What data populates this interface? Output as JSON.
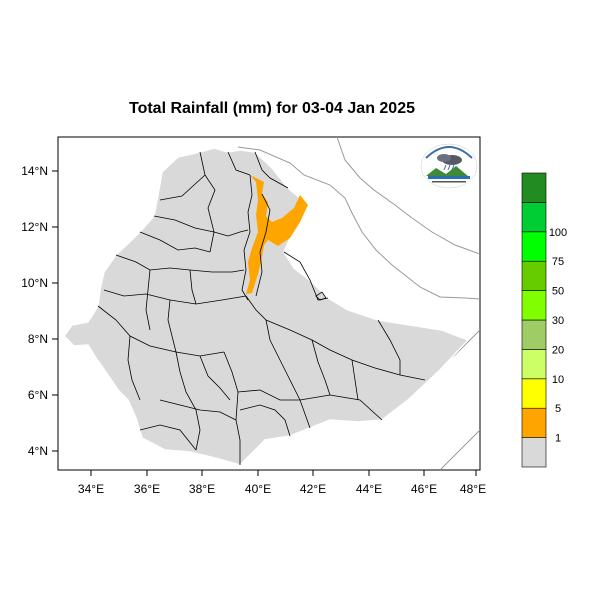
{
  "title": "Total Rainfall (mm) for 03-04 Jan 2025",
  "lat_ticks": [
    "14°N",
    "12°N",
    "10°N",
    "8°N",
    "6°N",
    "4°N"
  ],
  "lon_ticks": [
    "34°E",
    "36°E",
    "38°E",
    "40°E",
    "42°E",
    "44°E",
    "46°E",
    "48°E"
  ],
  "legend": {
    "labels": [
      "1",
      "5",
      "10",
      "20",
      "30",
      "50",
      "75",
      "100"
    ],
    "colors": [
      "#d9d9d9",
      "#ffa500",
      "#ffff00",
      "#ccff66",
      "#a0cc66",
      "#80ff00",
      "#66cc00",
      "#00ff00",
      "#00cc33",
      "#228b22"
    ]
  },
  "colors": {
    "land": "#d9d9d9",
    "rain_1_5": "#ffa500",
    "border": "#000000",
    "coast": "#999999"
  },
  "logo_icon": "agency-logo-icon"
}
